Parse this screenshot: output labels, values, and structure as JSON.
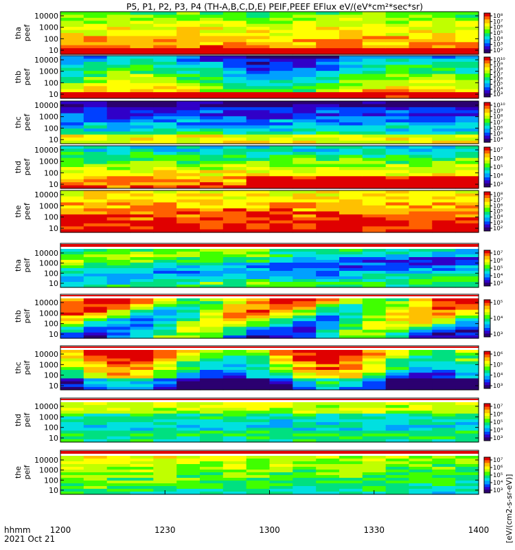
{
  "chart_data": {
    "type": "heatmap",
    "title": "P5, P1, P2, P3, P4 (TH-A,B,C,D,E) PEIF,PEEF EFlux eV/(eV*cm²*sec*sr)",
    "xaxis": {
      "ticks": [
        "1200",
        "1230",
        "1300",
        "1330",
        "1400"
      ],
      "corner_label_1": "hhmm",
      "corner_label_2": "2021 Oct 21"
    },
    "yaxis_ticks": [
      "10",
      "100",
      "1000",
      "10000"
    ],
    "log_y": true,
    "colorbar_label": "[eV/(cm2-s-sr-eV)]",
    "colorbar_colors": [
      "#2b0070",
      "#3000c8",
      "#0040ff",
      "#00a0ff",
      "#00e0e0",
      "#00e080",
      "#40ff00",
      "#c0ff00",
      "#ffff00",
      "#ffc000",
      "#ff6000",
      "#e00000"
    ],
    "panels": [
      {
        "name": "tha",
        "label": "peef",
        "cb_ticks": [
          "10²",
          "10³",
          "10⁴",
          "10⁵",
          "10⁶",
          "10⁷",
          "10⁸"
        ]
      },
      {
        "name": "thb",
        "label": "peef",
        "cb_ticks": [
          "10³",
          "10⁴",
          "10⁵",
          "10⁶",
          "10⁷",
          "10⁸",
          "10⁹",
          "10¹⁰"
        ]
      },
      {
        "name": "thc",
        "label": "peef",
        "cb_ticks": [
          "10⁴",
          "10⁵",
          "10⁶",
          "10⁷",
          "10⁸",
          "10⁹",
          "10¹⁰"
        ]
      },
      {
        "name": "thd",
        "label": "peef",
        "cb_ticks": [
          "10³",
          "10⁴",
          "10⁵",
          "10⁶",
          "10⁷"
        ]
      },
      {
        "name": "the",
        "label": "peef",
        "cb_ticks": [
          "10²",
          "10³",
          "10⁴",
          "10⁵",
          "10⁶",
          "10⁷",
          "10⁸"
        ]
      },
      {
        "name": "tha",
        "label": "peif",
        "cb_ticks": [
          "10³",
          "10⁴",
          "10⁵",
          "10⁶",
          "10⁷"
        ]
      },
      {
        "name": "thb",
        "label": "peif",
        "cb_ticks": [
          "10³",
          "10⁴",
          "10⁵"
        ]
      },
      {
        "name": "thc",
        "label": "peif",
        "cb_ticks": [
          "10³",
          "10⁴",
          "10⁵",
          "10⁶"
        ]
      },
      {
        "name": "thd",
        "label": "peif",
        "cb_ticks": [
          "10³",
          "10⁴",
          "10⁵",
          "10⁶",
          "10⁷"
        ]
      },
      {
        "name": "the",
        "label": "peif",
        "cb_ticks": [
          "10³",
          "10⁴",
          "10⁵",
          "10⁶",
          "10⁷"
        ]
      }
    ]
  }
}
